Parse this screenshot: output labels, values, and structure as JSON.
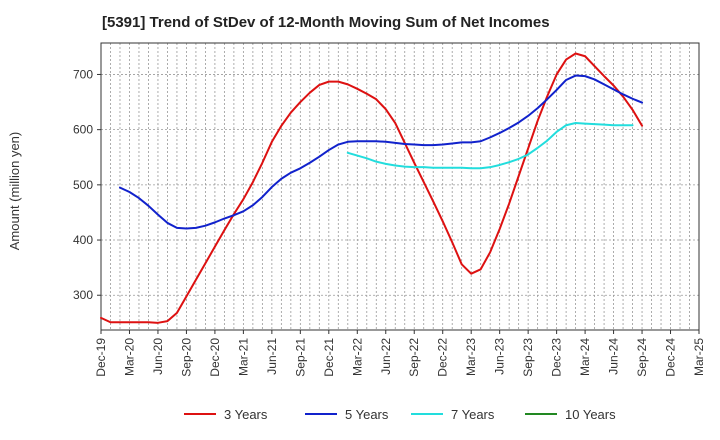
{
  "chart_data": {
    "type": "line",
    "title": "[5391]  Trend of StDev of 12-Month Moving Sum of Net Incomes",
    "ylabel": "Amount (million yen)",
    "xlabel": "",
    "ylim": [
      237,
      757
    ],
    "yticks": [
      300,
      400,
      500,
      600,
      700
    ],
    "x_tick_labels": [
      "Dec-19",
      "Mar-20",
      "Jun-20",
      "Sep-20",
      "Dec-20",
      "Mar-21",
      "Jun-21",
      "Sep-21",
      "Dec-21",
      "Mar-22",
      "Jun-22",
      "Sep-22",
      "Dec-22",
      "Mar-23",
      "Jun-23",
      "Sep-23",
      "Dec-23",
      "Mar-24",
      "Jun-24",
      "Sep-24",
      "Dec-24",
      "Mar-25"
    ],
    "grid": true,
    "legend_position": "bottom",
    "series": [
      {
        "name": "3 Years",
        "color": "#dd1111",
        "start_index": 0,
        "values": [
          259,
          251,
          251,
          251,
          251,
          251,
          250,
          253,
          268,
          298,
          328,
          358,
          388,
          418,
          447,
          474,
          505,
          540,
          578,
          607,
          631,
          650,
          667,
          681,
          687,
          687,
          682,
          674,
          665,
          655,
          637,
          612,
          576,
          540,
          505,
          470,
          434,
          396,
          356,
          339,
          347,
          378,
          420,
          466,
          516,
          566,
          616,
          660,
          700,
          727,
          738,
          733,
          715,
          697,
          680,
          660,
          636,
          607
        ]
      },
      {
        "name": "5 Years",
        "color": "#1122cc",
        "start_index": 2,
        "values": [
          495,
          487,
          476,
          462,
          446,
          431,
          422,
          421,
          422,
          426,
          432,
          439,
          445,
          452,
          463,
          478,
          496,
          511,
          522,
          530,
          540,
          551,
          563,
          573,
          578,
          579,
          579,
          579,
          578,
          576,
          574,
          573,
          572,
          572,
          573,
          575,
          577,
          577,
          579,
          586,
          594,
          603,
          613,
          625,
          639,
          655,
          672,
          690,
          698,
          697,
          691,
          682,
          673,
          664,
          656,
          649
        ]
      },
      {
        "name": "7 Years",
        "color": "#22dddd",
        "start_index": 26,
        "values": [
          558,
          553,
          548,
          542,
          538,
          535,
          533,
          532,
          532,
          531,
          531,
          531,
          531,
          530,
          530,
          532,
          536,
          541,
          547,
          555,
          567,
          580,
          596,
          608,
          612,
          611,
          610,
          609,
          608,
          608,
          608
        ]
      },
      {
        "name": "10 Years",
        "color": "#228822",
        "start_index": 0,
        "values": []
      }
    ]
  }
}
